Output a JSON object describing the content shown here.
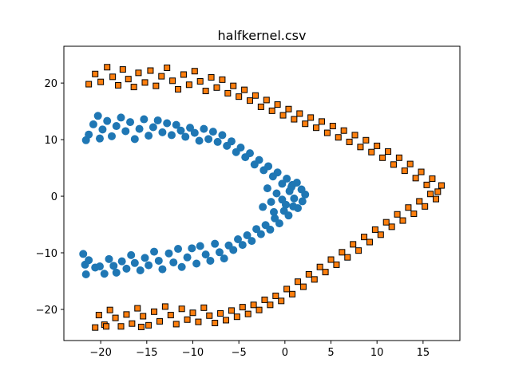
{
  "chart_data": {
    "type": "scatter",
    "title": "halfkernel.csv",
    "xlabel": "",
    "ylabel": "",
    "xlim": [
      -24,
      19
    ],
    "ylim": [
      -25.5,
      26.5
    ],
    "x_ticks": [
      -20,
      -15,
      -10,
      -5,
      0,
      5,
      10,
      15
    ],
    "y_ticks": [
      -20,
      -10,
      0,
      10,
      20
    ],
    "grid": false,
    "legend": "none",
    "series": [
      {
        "color": "#1f77b4",
        "marker": "circle-large",
        "points": [
          [
            -21.9,
            -10.2
          ],
          [
            -21.7,
            -12.1
          ],
          [
            -21.6,
            -13.8
          ],
          [
            -21.3,
            -11.3
          ],
          [
            -20.6,
            -12.6
          ],
          [
            -20.1,
            -12.4
          ],
          [
            -19.6,
            -13.7
          ],
          [
            -19.1,
            -11.1
          ],
          [
            -18.6,
            -12.3
          ],
          [
            -18.3,
            -13.5
          ],
          [
            -17.7,
            -11.5
          ],
          [
            -17.2,
            -12.8
          ],
          [
            -16.7,
            -10.4
          ],
          [
            -16.3,
            -11.8
          ],
          [
            -15.7,
            -13.1
          ],
          [
            -15.2,
            -10.9
          ],
          [
            -14.8,
            -12.2
          ],
          [
            -14.2,
            -9.8
          ],
          [
            -13.7,
            -11.4
          ],
          [
            -13.3,
            -12.9
          ],
          [
            -12.6,
            -10.1
          ],
          [
            -12.1,
            -11.7
          ],
          [
            -11.6,
            -9.3
          ],
          [
            -11.2,
            -12.5
          ],
          [
            -10.6,
            -10.8
          ],
          [
            -10.1,
            -9.2
          ],
          [
            -9.6,
            -11.9
          ],
          [
            -9.2,
            -8.8
          ],
          [
            -8.6,
            -10.3
          ],
          [
            -8.1,
            -11.4
          ],
          [
            -7.6,
            -8.4
          ],
          [
            -7.1,
            -9.9
          ],
          [
            -6.6,
            -11.0
          ],
          [
            -6.1,
            -8.7
          ],
          [
            -5.6,
            -9.5
          ],
          [
            -5.1,
            -7.6
          ],
          [
            -4.6,
            -8.6
          ],
          [
            -4.1,
            -6.9
          ],
          [
            -3.6,
            -7.9
          ],
          [
            -3.1,
            -5.8
          ],
          [
            -2.6,
            -6.7
          ],
          [
            -2.1,
            -5.1
          ],
          [
            -1.6,
            -5.9
          ],
          [
            -1.1,
            -3.9
          ],
          [
            -0.6,
            -4.8
          ],
          [
            -0.1,
            -2.6
          ],
          [
            0.4,
            -3.4
          ],
          [
            0.9,
            -1.8
          ],
          [
            1.4,
            -2.1
          ],
          [
            1.9,
            -0.9
          ],
          [
            2.2,
            0.3
          ],
          [
            1.8,
            1.2
          ],
          [
            1.3,
            2.4
          ],
          [
            0.7,
            1.6
          ],
          [
            0.2,
            3.1
          ],
          [
            -0.3,
            2.2
          ],
          [
            -0.8,
            4.2
          ],
          [
            -1.3,
            3.5
          ],
          [
            -1.8,
            5.3
          ],
          [
            -2.3,
            4.6
          ],
          [
            -2.8,
            6.4
          ],
          [
            -3.3,
            5.6
          ],
          [
            -3.8,
            7.6
          ],
          [
            -4.3,
            6.9
          ],
          [
            -4.8,
            8.6
          ],
          [
            -5.3,
            7.8
          ],
          [
            -5.8,
            9.7
          ],
          [
            -6.3,
            8.9
          ],
          [
            -6.8,
            10.8
          ],
          [
            -7.3,
            9.6
          ],
          [
            -7.8,
            11.4
          ],
          [
            -8.3,
            10.1
          ],
          [
            -8.8,
            11.9
          ],
          [
            -9.3,
            9.8
          ],
          [
            -9.8,
            11.2
          ],
          [
            -10.3,
            12.1
          ],
          [
            -10.8,
            10.5
          ],
          [
            -11.3,
            11.6
          ],
          [
            -11.8,
            12.6
          ],
          [
            -12.3,
            10.8
          ],
          [
            -12.8,
            12.9
          ],
          [
            -13.3,
            11.3
          ],
          [
            -13.8,
            13.4
          ],
          [
            -14.3,
            12.2
          ],
          [
            -14.8,
            10.7
          ],
          [
            -15.3,
            13.6
          ],
          [
            -15.8,
            11.9
          ],
          [
            -16.3,
            10.1
          ],
          [
            -16.8,
            13.1
          ],
          [
            -17.3,
            11.5
          ],
          [
            -17.8,
            13.9
          ],
          [
            -18.3,
            12.4
          ],
          [
            -18.8,
            10.6
          ],
          [
            -19.3,
            13.3
          ],
          [
            -19.8,
            11.8
          ],
          [
            -20.3,
            14.2
          ],
          [
            -20.8,
            12.7
          ],
          [
            -21.3,
            10.9
          ],
          [
            -21.6,
            9.9
          ],
          [
            -20.1,
            10.2
          ],
          [
            -1.5,
            -1.0
          ],
          [
            -0.9,
            0.5
          ],
          [
            -0.3,
            -0.6
          ],
          [
            0.5,
            0.9
          ],
          [
            1.0,
            -0.4
          ],
          [
            -1.9,
            1.4
          ],
          [
            -2.4,
            -1.9
          ],
          [
            0.1,
            -1.5
          ],
          [
            0.8,
            2.0
          ],
          [
            -1.2,
            -2.8
          ]
        ]
      },
      {
        "color": "#ff7f0e",
        "marker": "square-small-outlined",
        "points": [
          [
            -21.3,
            19.8
          ],
          [
            -20.6,
            21.6
          ],
          [
            -20.0,
            20.2
          ],
          [
            -19.3,
            22.8
          ],
          [
            -18.7,
            21.1
          ],
          [
            -18.1,
            19.6
          ],
          [
            -17.6,
            22.4
          ],
          [
            -17.0,
            20.7
          ],
          [
            -16.4,
            19.3
          ],
          [
            -15.9,
            21.8
          ],
          [
            -15.2,
            20.1
          ],
          [
            -14.6,
            22.2
          ],
          [
            -14.0,
            19.5
          ],
          [
            -13.4,
            21.2
          ],
          [
            -12.8,
            22.7
          ],
          [
            -12.2,
            20.4
          ],
          [
            -11.6,
            18.9
          ],
          [
            -11.0,
            21.5
          ],
          [
            -10.4,
            19.7
          ],
          [
            -9.8,
            22.1
          ],
          [
            -9.2,
            20.3
          ],
          [
            -8.6,
            18.6
          ],
          [
            -8.0,
            21.0
          ],
          [
            -7.4,
            19.2
          ],
          [
            -6.8,
            20.6
          ],
          [
            -6.2,
            18.2
          ],
          [
            -5.6,
            19.5
          ],
          [
            -5.0,
            17.6
          ],
          [
            -4.4,
            18.8
          ],
          [
            -3.8,
            16.9
          ],
          [
            -3.2,
            17.8
          ],
          [
            -2.6,
            15.8
          ],
          [
            -2.0,
            17.0
          ],
          [
            -1.4,
            15.1
          ],
          [
            -0.8,
            16.2
          ],
          [
            -0.2,
            14.3
          ],
          [
            0.4,
            15.4
          ],
          [
            1.0,
            13.6
          ],
          [
            1.6,
            14.6
          ],
          [
            2.2,
            12.8
          ],
          [
            2.8,
            13.9
          ],
          [
            3.4,
            12.1
          ],
          [
            4.0,
            13.2
          ],
          [
            4.6,
            11.2
          ],
          [
            5.2,
            12.4
          ],
          [
            5.8,
            10.4
          ],
          [
            6.4,
            11.6
          ],
          [
            7.0,
            9.6
          ],
          [
            7.6,
            10.8
          ],
          [
            8.2,
            8.7
          ],
          [
            8.8,
            9.9
          ],
          [
            9.4,
            7.8
          ],
          [
            10.0,
            8.9
          ],
          [
            10.6,
            6.8
          ],
          [
            11.2,
            7.9
          ],
          [
            11.8,
            5.6
          ],
          [
            12.4,
            6.8
          ],
          [
            13.0,
            4.5
          ],
          [
            13.6,
            5.7
          ],
          [
            14.2,
            3.2
          ],
          [
            14.8,
            4.3
          ],
          [
            15.4,
            2.0
          ],
          [
            16.0,
            3.1
          ],
          [
            16.6,
            0.8
          ],
          [
            17.0,
            1.9
          ],
          [
            16.4,
            -0.5
          ],
          [
            15.8,
            0.4
          ],
          [
            15.2,
            -1.8
          ],
          [
            14.6,
            -0.9
          ],
          [
            14.0,
            -3.1
          ],
          [
            13.4,
            -2.0
          ],
          [
            12.8,
            -4.3
          ],
          [
            12.2,
            -3.2
          ],
          [
            11.6,
            -5.4
          ],
          [
            11.0,
            -4.6
          ],
          [
            10.4,
            -6.8
          ],
          [
            9.8,
            -5.9
          ],
          [
            9.2,
            -8.1
          ],
          [
            8.6,
            -7.2
          ],
          [
            8.0,
            -9.6
          ],
          [
            7.4,
            -8.5
          ],
          [
            6.8,
            -10.8
          ],
          [
            6.2,
            -9.9
          ],
          [
            5.6,
            -12.1
          ],
          [
            5.0,
            -11.2
          ],
          [
            4.4,
            -13.4
          ],
          [
            3.8,
            -12.5
          ],
          [
            3.2,
            -14.7
          ],
          [
            2.6,
            -13.8
          ],
          [
            2.0,
            -16.0
          ],
          [
            1.4,
            -15.1
          ],
          [
            0.8,
            -17.3
          ],
          [
            0.2,
            -16.4
          ],
          [
            -0.4,
            -18.5
          ],
          [
            -1.0,
            -17.6
          ],
          [
            -1.6,
            -19.2
          ],
          [
            -2.2,
            -18.3
          ],
          [
            -2.8,
            -20.1
          ],
          [
            -3.4,
            -19.2
          ],
          [
            -4.0,
            -20.8
          ],
          [
            -4.6,
            -19.6
          ],
          [
            -5.2,
            -21.3
          ],
          [
            -5.8,
            -20.2
          ],
          [
            -6.4,
            -21.9
          ],
          [
            -7.0,
            -20.7
          ],
          [
            -7.6,
            -22.4
          ],
          [
            -8.2,
            -21.1
          ],
          [
            -8.8,
            -19.7
          ],
          [
            -9.4,
            -22.2
          ],
          [
            -10.0,
            -20.6
          ],
          [
            -10.6,
            -21.8
          ],
          [
            -11.2,
            -19.9
          ],
          [
            -11.8,
            -22.6
          ],
          [
            -12.4,
            -21.0
          ],
          [
            -13.0,
            -19.5
          ],
          [
            -13.6,
            -22.1
          ],
          [
            -14.2,
            -20.4
          ],
          [
            -14.8,
            -22.8
          ],
          [
            -15.4,
            -21.2
          ],
          [
            -16.0,
            -19.8
          ],
          [
            -16.6,
            -22.5
          ],
          [
            -17.2,
            -20.9
          ],
          [
            -17.8,
            -23.0
          ],
          [
            -18.4,
            -21.5
          ],
          [
            -19.0,
            -20.1
          ],
          [
            -19.6,
            -22.7
          ],
          [
            -20.2,
            -21.0
          ],
          [
            -20.6,
            -23.2
          ],
          [
            -19.4,
            -23.0
          ],
          [
            -15.6,
            -23.1
          ]
        ]
      }
    ]
  }
}
